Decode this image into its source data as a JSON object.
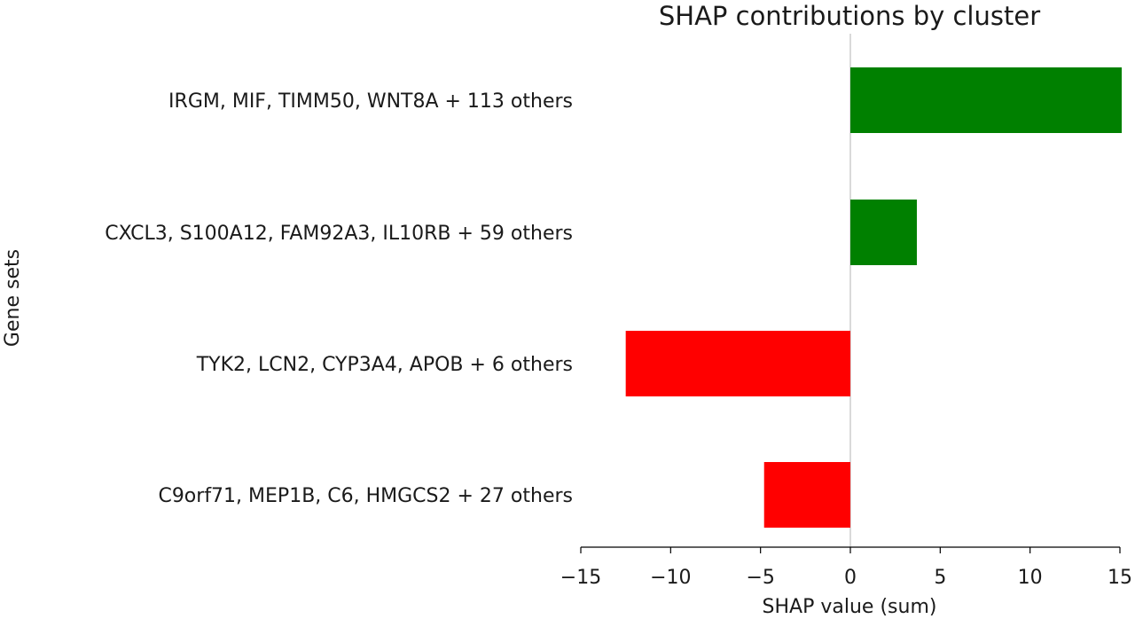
{
  "chart_data": {
    "type": "bar",
    "orientation": "horizontal",
    "title": "SHAP contributions by cluster",
    "xlabel": "SHAP value (sum)",
    "ylabel": "Gene sets",
    "categories": [
      "IRGM, MIF, TIMM50, WNT8A + 113 others",
      "CXCL3, S100A12, FAM92A3, IL10RB + 59 others",
      "TYK2, LCN2, CYP3A4, APOB + 6 others",
      "C9orf71, MEP1B, C6, HMGCS2 + 27 others"
    ],
    "values": [
      15.1,
      3.7,
      -12.5,
      -4.8
    ],
    "xlim": [
      -15,
      15
    ],
    "xticks": [
      -15,
      -10,
      -5,
      0,
      5,
      10,
      15
    ],
    "xtick_labels": [
      "−15",
      "−10",
      "−5",
      "0",
      "5",
      "10",
      "15"
    ],
    "colors": {
      "positive": "#008000",
      "negative": "#ff0000",
      "zero_line": "#d9d9d9",
      "axis": "#000000"
    },
    "grid": false,
    "legend": "none"
  }
}
